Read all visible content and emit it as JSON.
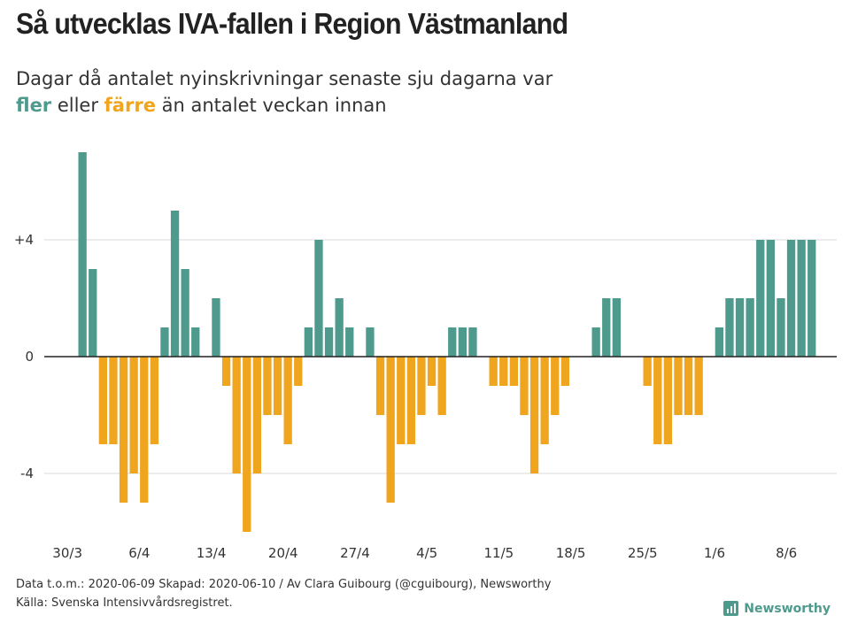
{
  "title": "Så utvecklas IVA-fallen i Region Västmanland",
  "subtitle": {
    "line1": "Dagar då antalet nyinskrivningar senaste sju dagarna var",
    "up_word": "fler",
    "middle": " eller ",
    "down_word": "färre",
    "end": " än antalet veckan innan"
  },
  "footer": {
    "line1": "Data t.o.m.: 2020-06-09 Skapad: 2020-06-10 / Av Clara Guibourg (@cguibourg), Newsworthy",
    "line2": "Källa: Svenska Intensivvårdsregistret."
  },
  "brand": {
    "name": "Newsworthy",
    "icon": "bar-chart-icon"
  },
  "colors": {
    "positive": "#4e9a8d",
    "negative": "#f0a51e",
    "grid": "#d9d9d9",
    "axis": "#222222"
  },
  "chart_data": {
    "type": "bar",
    "title": "Så utvecklas IVA-fallen i Region Västmanland",
    "ylabel": "",
    "xlabel": "",
    "ylim": [
      -7,
      7
    ],
    "yticks": [
      4,
      0,
      -4
    ],
    "ytick_labels": [
      "+4",
      "0",
      "-4"
    ],
    "start_date": "30/3",
    "xtick_labels": [
      "30/3",
      "6/4",
      "13/4",
      "20/4",
      "27/4",
      "4/5",
      "11/5",
      "18/5",
      "25/5",
      "1/6",
      "8/6"
    ],
    "xtick_every_days": 7,
    "values": [
      7,
      3,
      -3,
      -3,
      -5,
      -4,
      -5,
      -3,
      1,
      5,
      3,
      1,
      0,
      2,
      -1,
      -4,
      -6,
      -4,
      -2,
      -2,
      -3,
      -1,
      1,
      4,
      1,
      2,
      1,
      0,
      1,
      -2,
      -5,
      -3,
      -3,
      -2,
      -1,
      -2,
      1,
      1,
      1,
      0,
      -1,
      -1,
      -1,
      -2,
      -4,
      -3,
      -2,
      -1,
      0,
      0,
      1,
      2,
      2,
      0,
      0,
      -1,
      -3,
      -3,
      -2,
      -2,
      -2,
      0,
      1,
      2,
      2,
      2,
      4,
      4,
      2,
      4,
      4,
      4
    ]
  }
}
